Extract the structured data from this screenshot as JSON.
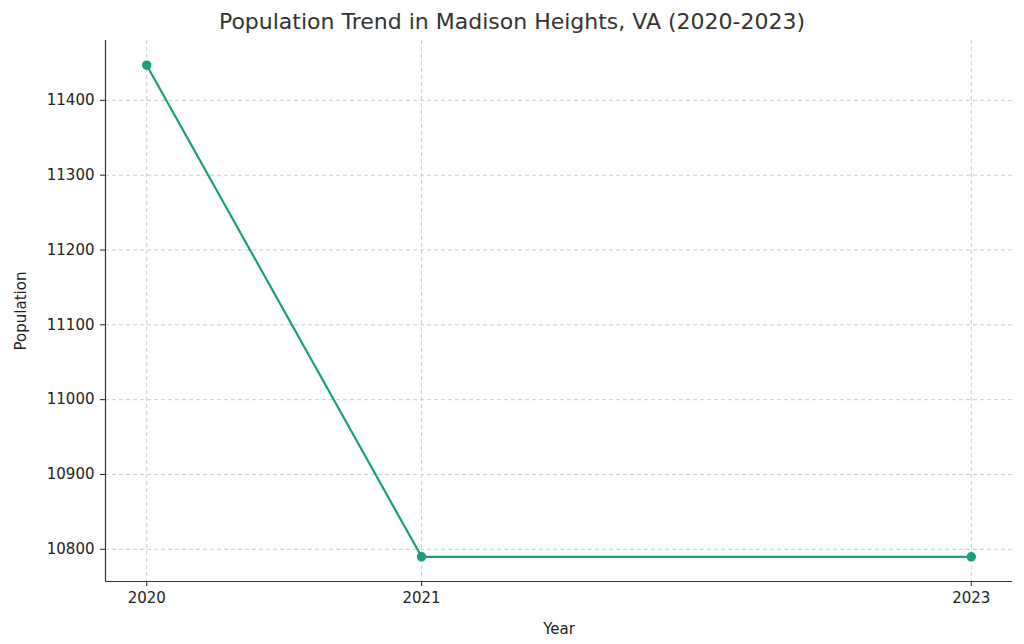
{
  "chart_data": {
    "type": "line",
    "title": "Population Trend in Madison Heights, VA (2020-2023)",
    "x": [
      2020,
      2021,
      2023
    ],
    "values": [
      11447,
      10790,
      10790
    ],
    "color": "#1a9e7e",
    "marker": "o",
    "xlabel": "Year",
    "ylabel": "Population",
    "xlim": [
      2019.85,
      2023.15
    ],
    "ylim": [
      10757,
      11480
    ],
    "xticks": [
      2020,
      2021,
      2023
    ],
    "yticks": [
      10800,
      10900,
      11000,
      11100,
      11200,
      11300,
      11400
    ],
    "grid": true
  }
}
